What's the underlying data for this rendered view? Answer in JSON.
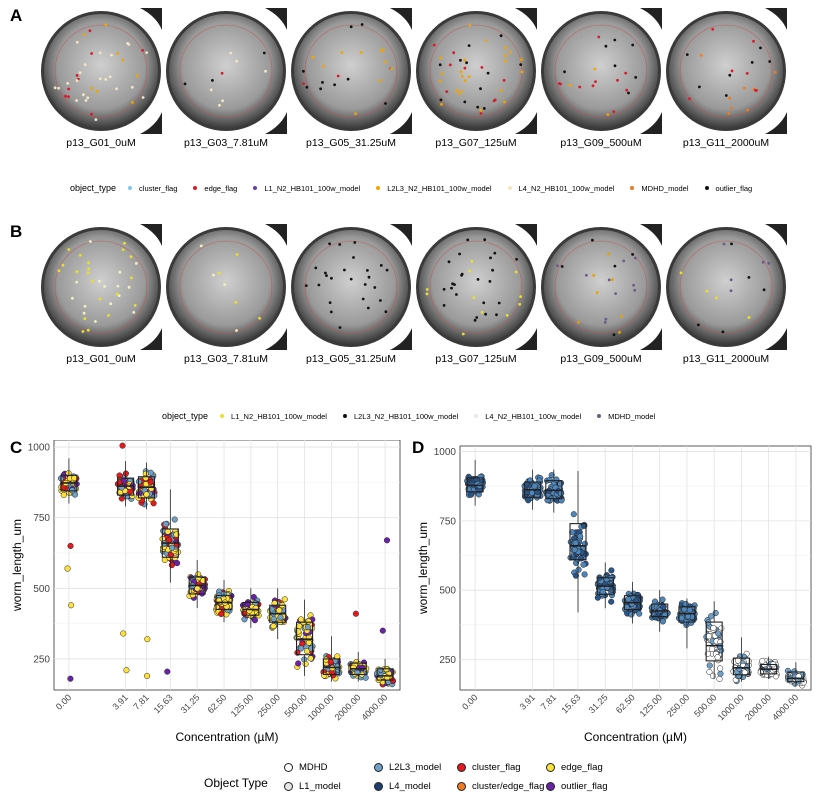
{
  "panel_a": {
    "letter": "A",
    "wells": [
      "p13_G01_0uM",
      "p13_G03_7.81uM",
      "p13_G05_31.25uM",
      "p13_G07_125uM",
      "p13_G09_500uM",
      "p13_G11_2000uM"
    ],
    "legend_title": "object_type",
    "legend": [
      {
        "label": "cluster_flag",
        "color": "#7fc7f0"
      },
      {
        "label": "edge_flag",
        "color": "#d81b2c"
      },
      {
        "label": "L1_N2_HB101_100w_model",
        "color": "#6a3db0"
      },
      {
        "label": "L2L3_N2_HB101_100w_model",
        "color": "#f0a400"
      },
      {
        "label": "L4_N2_HB101_100w_model",
        "color": "#f3e4c4"
      },
      {
        "label": "MDHD_model",
        "color": "#f07a20"
      },
      {
        "label": "outlier_flag",
        "color": "#111111"
      }
    ]
  },
  "panel_b": {
    "letter": "B",
    "wells": [
      "p13_G01_0uM",
      "p13_G03_7.81uM",
      "p13_G05_31.25uM",
      "p13_G07_125uM",
      "p13_G09_500uM",
      "p13_G11_2000uM"
    ],
    "legend_title": "object_type",
    "legend": [
      {
        "label": "L1_N2_HB101_100w_model",
        "color": "#e8e02a"
      },
      {
        "label": "L2L3_N2_HB101_100w_model",
        "color": "#111111"
      },
      {
        "label": "L4_N2_HB101_100w_model",
        "color": "#e6e6e6"
      },
      {
        "label": "MDHD_model",
        "color": "#6b5a8a"
      }
    ]
  },
  "chart_data": [
    {
      "panel": "C",
      "type": "box",
      "xlabel": "Concentration (µM)",
      "ylabel": "worm_length_um",
      "ylim": [
        140,
        1025
      ],
      "yticks": [
        250,
        500,
        750,
        1000
      ],
      "categories": [
        "0.00",
        "3.91",
        "7.81",
        "15.63",
        "31.25",
        "62.50",
        "125.00",
        "250.00",
        "500.00",
        "1000.00",
        "2000.00",
        "4000.00"
      ],
      "boxes": [
        {
          "q1": 845,
          "median": 873,
          "q3": 900,
          "whisker_low": 800,
          "whisker_high": 960
        },
        {
          "q1": 830,
          "median": 862,
          "q3": 890,
          "whisker_low": 790,
          "whisker_high": 950
        },
        {
          "q1": 820,
          "median": 858,
          "q3": 895,
          "whisker_low": 780,
          "whisker_high": 945
        },
        {
          "q1": 610,
          "median": 660,
          "q3": 710,
          "whisker_low": 520,
          "whisker_high": 850
        },
        {
          "q1": 480,
          "median": 510,
          "q3": 540,
          "whisker_low": 430,
          "whisker_high": 600
        },
        {
          "q1": 425,
          "median": 450,
          "q3": 475,
          "whisker_low": 380,
          "whisker_high": 530
        },
        {
          "q1": 405,
          "median": 425,
          "q3": 450,
          "whisker_low": 360,
          "whisker_high": 500
        },
        {
          "q1": 380,
          "median": 410,
          "q3": 440,
          "whisker_low": 320,
          "whisker_high": 500
        },
        {
          "q1": 265,
          "median": 320,
          "q3": 380,
          "whisker_low": 190,
          "whisker_high": 460
        },
        {
          "q1": 195,
          "median": 220,
          "q3": 250,
          "whisker_low": 170,
          "whisker_high": 330
        },
        {
          "q1": 195,
          "median": 215,
          "q3": 235,
          "whisker_low": 170,
          "whisker_high": 275
        },
        {
          "q1": 175,
          "median": 190,
          "q3": 215,
          "whisker_low": 160,
          "whisker_high": 250
        }
      ]
    },
    {
      "panel": "D",
      "type": "box",
      "xlabel": "Concentration (µM)",
      "ylabel": "worm_length_um",
      "ylim": [
        140,
        1020
      ],
      "yticks": [
        250,
        500,
        750,
        1000
      ],
      "categories": [
        "0.00",
        "3.91",
        "7.81",
        "15.63",
        "31.25",
        "62.50",
        "125.00",
        "250.00",
        "500.00",
        "1000.00",
        "2000.00",
        "4000.00"
      ],
      "boxes": [
        {
          "q1": 855,
          "median": 878,
          "q3": 905,
          "whisker_low": 805,
          "whisker_high": 970
        },
        {
          "q1": 835,
          "median": 862,
          "q3": 890,
          "whisker_low": 790,
          "whisker_high": 935
        },
        {
          "q1": 830,
          "median": 860,
          "q3": 895,
          "whisker_low": 780,
          "whisker_high": 935
        },
        {
          "q1": 610,
          "median": 660,
          "q3": 740,
          "whisker_low": 420,
          "whisker_high": 930
        },
        {
          "q1": 485,
          "median": 515,
          "q3": 545,
          "whisker_low": 435,
          "whisker_high": 600
        },
        {
          "q1": 430,
          "median": 455,
          "q3": 480,
          "whisker_low": 380,
          "whisker_high": 530
        },
        {
          "q1": 405,
          "median": 425,
          "q3": 450,
          "whisker_low": 350,
          "whisker_high": 500
        },
        {
          "q1": 385,
          "median": 415,
          "q3": 440,
          "whisker_low": 290,
          "whisker_high": 470
        },
        {
          "q1": 245,
          "median": 300,
          "q3": 385,
          "whisker_low": 180,
          "whisker_high": 460
        },
        {
          "q1": 195,
          "median": 220,
          "q3": 255,
          "whisker_low": 170,
          "whisker_high": 330
        },
        {
          "q1": 198,
          "median": 215,
          "q3": 232,
          "whisker_low": 180,
          "whisker_high": 260
        },
        {
          "q1": 170,
          "median": 182,
          "q3": 205,
          "whisker_low": 155,
          "whisker_high": 240
        }
      ]
    }
  ],
  "bottom_legend": {
    "title": "Object Type",
    "items": [
      {
        "label": "MDHD",
        "color": "#ffffff"
      },
      {
        "label": "L1_model",
        "color": "#e6e6e6"
      },
      {
        "label": "L2L3_model",
        "color": "#6ea0c8"
      },
      {
        "label": "L4_model",
        "color": "#1f3f70"
      },
      {
        "label": "cluster_flag",
        "color": "#e41a1c"
      },
      {
        "label": "cluster/edge_flag",
        "color": "#f07a20"
      },
      {
        "label": "edge_flag",
        "color": "#ffe13a"
      },
      {
        "label": "outlier_flag",
        "color": "#6a22a8"
      }
    ]
  }
}
